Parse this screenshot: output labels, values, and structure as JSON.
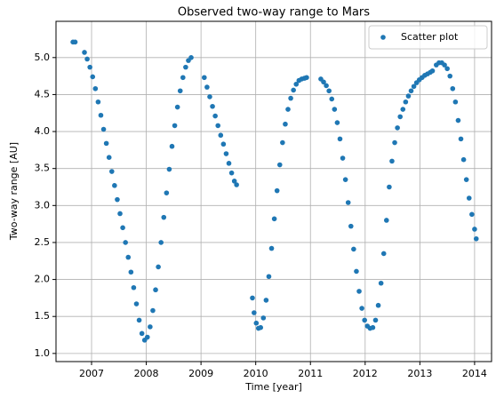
{
  "chart_data": {
    "type": "scatter",
    "title": "Observed two-way range to Mars",
    "x_label": "Time [year]",
    "y_label": "Two-way range [AU]",
    "xlim": [
      2006.35,
      2014.31
    ],
    "ylim": [
      0.89,
      5.49
    ],
    "xticks": [
      2007,
      2008,
      2009,
      2010,
      2011,
      2012,
      2013,
      2014
    ],
    "yticks": [
      {
        "value": 1,
        "label": "1.0"
      },
      1.5,
      {
        "value": 2,
        "label": "2.0"
      },
      2.5,
      {
        "value": 3,
        "label": "3.0"
      },
      3.5,
      {
        "value": 4,
        "label": "4.0"
      },
      4.5,
      {
        "value": 5,
        "label": "5.0"
      }
    ],
    "grid": true,
    "legend": "upper right",
    "series": [
      {
        "name": "Scatter plot",
        "color": "#1f77b4",
        "x": [
          2006.66,
          2006.7,
          2006.87,
          2006.92,
          2006.97,
          2007.02,
          2007.07,
          2007.12,
          2007.17,
          2007.22,
          2007.27,
          2007.32,
          2007.37,
          2007.42,
          2007.47,
          2007.52,
          2007.57,
          2007.62,
          2007.67,
          2007.72,
          2007.77,
          2007.82,
          2007.87,
          2007.92,
          2007.97,
          2008.02,
          2008.07,
          2008.12,
          2008.17,
          2008.22,
          2008.27,
          2008.32,
          2008.37,
          2008.42,
          2008.47,
          2008.52,
          2008.57,
          2008.62,
          2008.67,
          2008.72,
          2008.77,
          2008.82,
          2009.06,
          2009.11,
          2009.16,
          2009.21,
          2009.26,
          2009.31,
          2009.36,
          2009.41,
          2009.46,
          2009.51,
          2009.56,
          2009.61,
          2009.65,
          2009.94,
          2009.97,
          2010.01,
          2010.05,
          2010.09,
          2010.14,
          2010.19,
          2010.24,
          2010.29,
          2010.34,
          2010.39,
          2010.44,
          2010.49,
          2010.54,
          2010.59,
          2010.64,
          2010.69,
          2010.74,
          2010.79,
          2010.84,
          2010.89,
          2010.93,
          2011.19,
          2011.24,
          2011.29,
          2011.34,
          2011.39,
          2011.44,
          2011.49,
          2011.54,
          2011.59,
          2011.64,
          2011.69,
          2011.74,
          2011.79,
          2011.84,
          2011.89,
          2011.94,
          2011.99,
          2012.04,
          2012.09,
          2012.14,
          2012.19,
          2012.24,
          2012.29,
          2012.34,
          2012.39,
          2012.44,
          2012.49,
          2012.54,
          2012.59,
          2012.64,
          2012.69,
          2012.74,
          2012.79,
          2012.84,
          2012.89,
          2012.94,
          2012.99,
          2013.04,
          2013.09,
          2013.14,
          2013.19,
          2013.23,
          2013.3,
          2013.35,
          2013.4,
          2013.45,
          2013.5,
          2013.55,
          2013.6,
          2013.65,
          2013.7,
          2013.75,
          2013.8,
          2013.85,
          2013.9,
          2013.95,
          2014.0,
          2014.03
        ],
        "values": [
          5.21,
          5.21,
          5.07,
          4.98,
          4.87,
          4.74,
          4.58,
          4.4,
          4.22,
          4.03,
          3.84,
          3.65,
          3.46,
          3.27,
          3.08,
          2.89,
          2.7,
          2.5,
          2.3,
          2.1,
          1.89,
          1.67,
          1.45,
          1.27,
          1.18,
          1.22,
          1.36,
          1.58,
          1.86,
          2.17,
          2.5,
          2.84,
          3.17,
          3.49,
          3.8,
          4.08,
          4.33,
          4.55,
          4.73,
          4.87,
          4.96,
          5.0,
          4.73,
          4.6,
          4.47,
          4.34,
          4.21,
          4.08,
          3.95,
          3.83,
          3.7,
          3.57,
          3.44,
          3.33,
          3.28,
          1.75,
          1.55,
          1.41,
          1.34,
          1.35,
          1.48,
          1.72,
          2.04,
          2.42,
          2.82,
          3.2,
          3.55,
          3.85,
          4.1,
          4.3,
          4.45,
          4.56,
          4.64,
          4.69,
          4.71,
          4.72,
          4.73,
          4.71,
          4.67,
          4.62,
          4.55,
          4.44,
          4.3,
          4.12,
          3.9,
          3.64,
          3.35,
          3.04,
          2.72,
          2.41,
          2.11,
          1.84,
          1.61,
          1.45,
          1.37,
          1.34,
          1.35,
          1.45,
          1.65,
          1.95,
          2.35,
          2.8,
          3.25,
          3.6,
          3.85,
          4.05,
          4.2,
          4.3,
          4.4,
          4.48,
          4.55,
          4.61,
          4.66,
          4.7,
          4.73,
          4.76,
          4.78,
          4.8,
          4.82,
          4.9,
          4.93,
          4.93,
          4.9,
          4.85,
          4.75,
          4.58,
          4.4,
          4.15,
          3.9,
          3.62,
          3.35,
          3.1,
          2.88,
          2.68,
          2.55
        ]
      }
    ]
  }
}
